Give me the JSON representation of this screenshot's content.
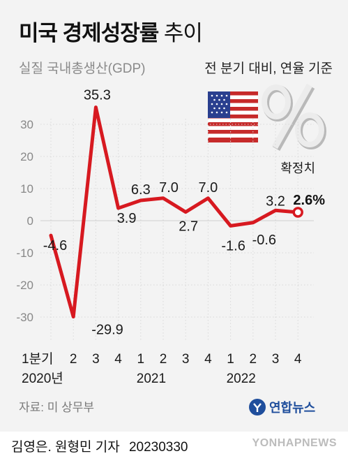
{
  "header": {
    "title_bold": "미국 경제성장률",
    "title_light": "추이",
    "subtitle": "실질 국내총생산(GDP)",
    "basis": "전 분기 대비, 연율 기준"
  },
  "source": "자료: 미 상무부",
  "footer": {
    "reporters": "김영은. 원형민 기자",
    "date": "20230330",
    "watermark": "YONHAPNEWS",
    "logo_text": "연합뉴스"
  },
  "colors": {
    "line": "#d71920",
    "panel": "#f3f3f3",
    "grid": "#d9d9d9"
  },
  "chart_data": {
    "type": "line",
    "title": "미국 경제성장률 추이",
    "ylabel": "실질 국내총생산(GDP)",
    "ylim": [
      -35,
      40
    ],
    "yticks": [
      30,
      20,
      10,
      0,
      -10,
      -20,
      -30
    ],
    "categories": [
      "1분기",
      "2",
      "3",
      "4",
      "1",
      "2",
      "3",
      "4",
      "1",
      "2",
      "3",
      "4"
    ],
    "year_labels": [
      {
        "text": "2020년",
        "index": 0
      },
      {
        "text": "2021",
        "index": 4
      },
      {
        "text": "2022",
        "index": 8
      }
    ],
    "values": [
      -4.6,
      -29.9,
      35.3,
      3.9,
      6.3,
      7.0,
      2.7,
      7.0,
      -1.6,
      -0.6,
      3.2,
      2.6
    ],
    "data_labels": [
      "-4.6",
      "-29.9",
      "35.3",
      "3.9",
      "6.3",
      "7.0",
      "2.7",
      "7.0",
      "-1.6",
      "-0.6",
      "3.2",
      "2.6%"
    ],
    "annotation": "확정치",
    "grid": true
  }
}
